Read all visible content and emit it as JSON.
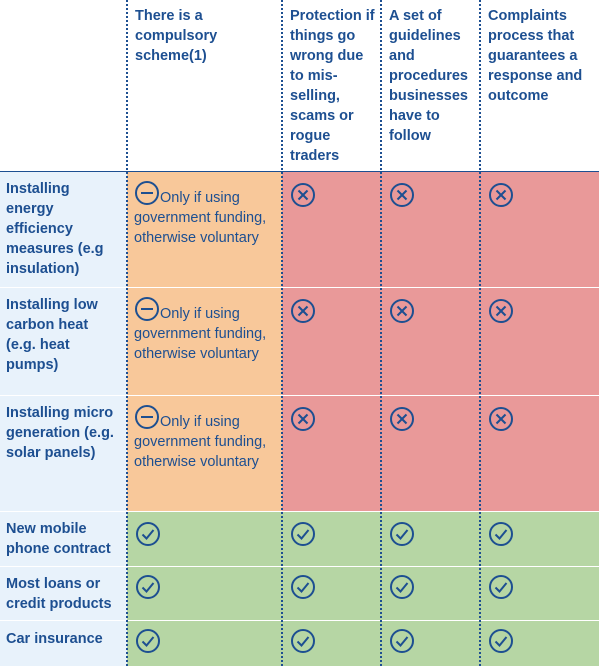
{
  "columns": [
    "There is a compulsory scheme(1)",
    "Protection if things go wrong due to mis-selling, scams or rogue traders",
    "A set of guidelines and procedures businesses have to follow",
    "Complaints process that guarantees a response and outcome"
  ],
  "rows": [
    {
      "label": "Installing energy efficiency measures (e.g insulation)",
      "partial_note": "Only if using government funding, otherwise voluntary",
      "cells": [
        "partial",
        "no",
        "no",
        "no"
      ]
    },
    {
      "label": "Installing low carbon heat (e.g. heat pumps)",
      "partial_note": "Only if using government funding, otherwise voluntary",
      "cells": [
        "partial",
        "no",
        "no",
        "no"
      ]
    },
    {
      "label": "Installing micro generation (e.g. solar panels)",
      "partial_note": "Only if using government funding, otherwise voluntary",
      "cells": [
        "partial",
        "no",
        "no",
        "no"
      ]
    },
    {
      "label": "New mobile phone contract",
      "cells": [
        "yes",
        "yes",
        "yes",
        "yes"
      ]
    },
    {
      "label": "Most loans or credit products",
      "cells": [
        "yes",
        "yes",
        "yes",
        "yes"
      ]
    },
    {
      "label": "Car insurance",
      "cells": [
        "yes",
        "yes",
        "yes",
        "yes"
      ]
    }
  ],
  "icons": {
    "yes": "check-circle-icon",
    "no": "cross-circle-icon",
    "partial": "minus-circle-icon"
  },
  "colors": {
    "partial": "#f8c89a",
    "no": "#e99999",
    "yes": "#b6d6a4",
    "row_header": "#e8f2fb",
    "text": "#1d4f91"
  }
}
